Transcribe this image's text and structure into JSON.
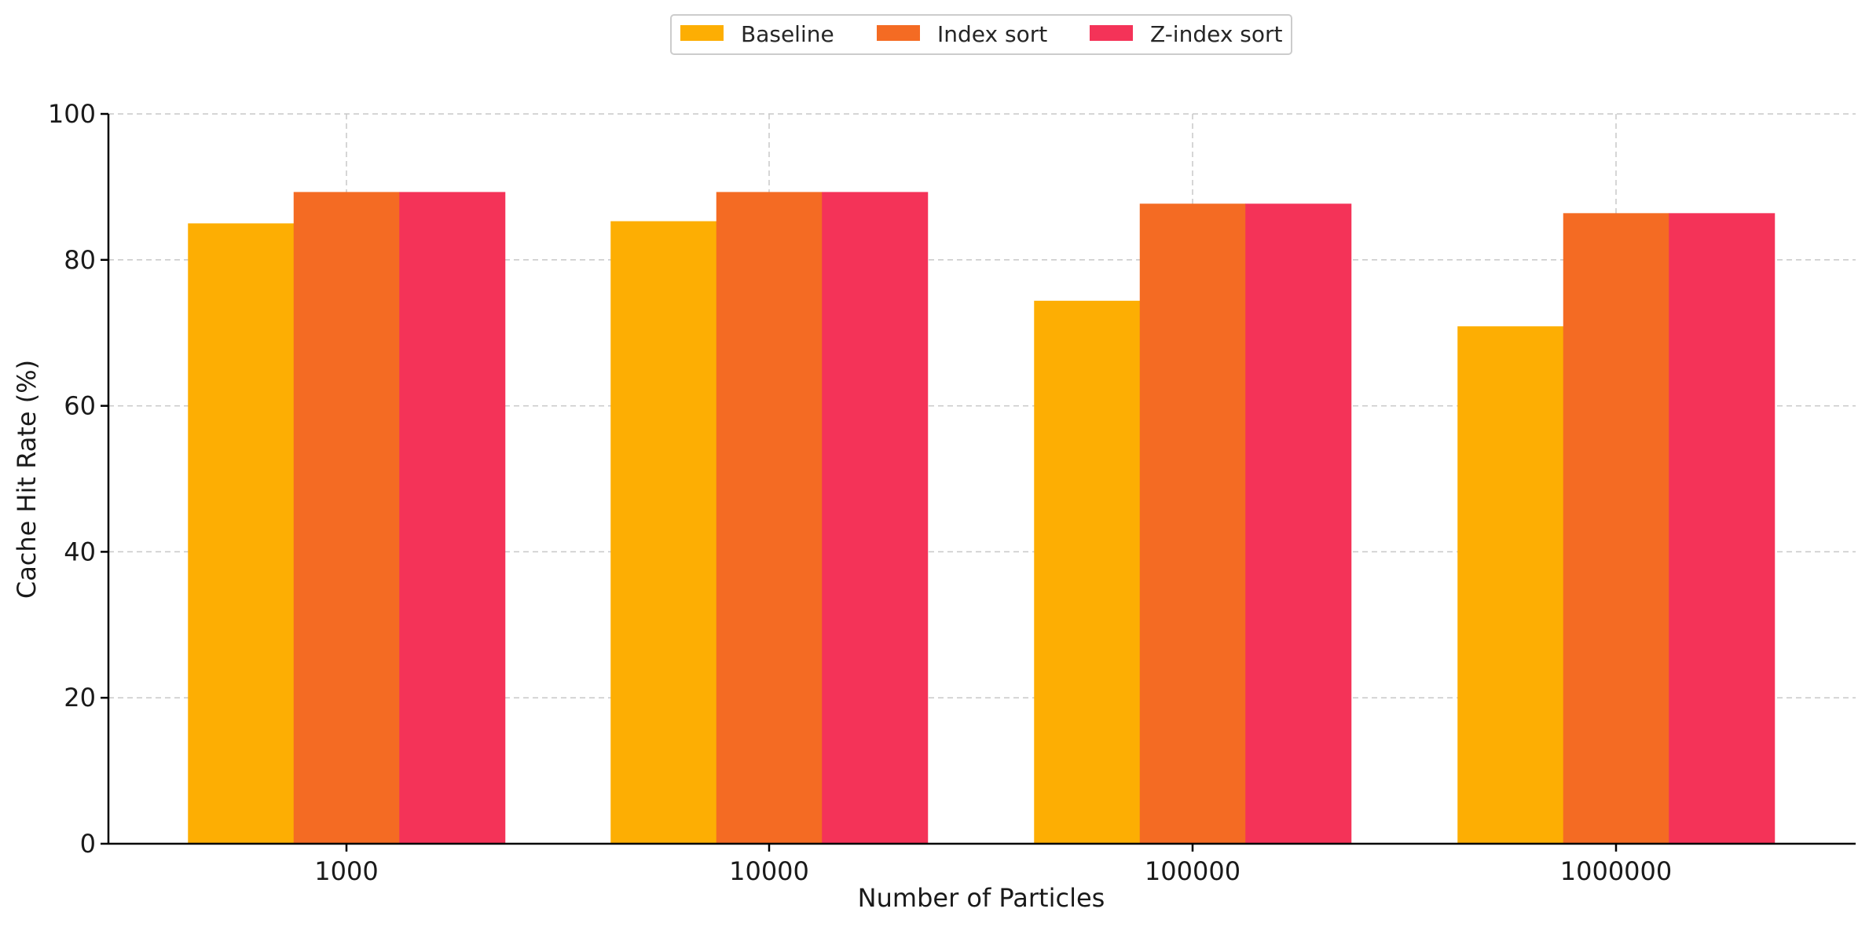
{
  "chart_data": {
    "type": "bar",
    "title": "",
    "xlabel": "Number of Particles",
    "ylabel": "Cache Hit Rate (%)",
    "categories": [
      "1000",
      "10000",
      "100000",
      "1000000"
    ],
    "ylim": [
      0,
      100
    ],
    "yticks": [
      "0",
      "20",
      "40",
      "60",
      "80",
      "100"
    ],
    "grid": true,
    "legend_position": "top-center",
    "series": [
      {
        "name": "Baseline",
        "color": "#FDAE03",
        "values": [
          85.0,
          85.3,
          74.4,
          70.9
        ]
      },
      {
        "name": "Index sort",
        "color": "#F46B23",
        "values": [
          89.3,
          89.3,
          87.7,
          86.4
        ]
      },
      {
        "name": "Z-index sort",
        "color": "#F43358",
        "values": [
          89.3,
          89.3,
          87.7,
          86.4
        ]
      }
    ]
  }
}
